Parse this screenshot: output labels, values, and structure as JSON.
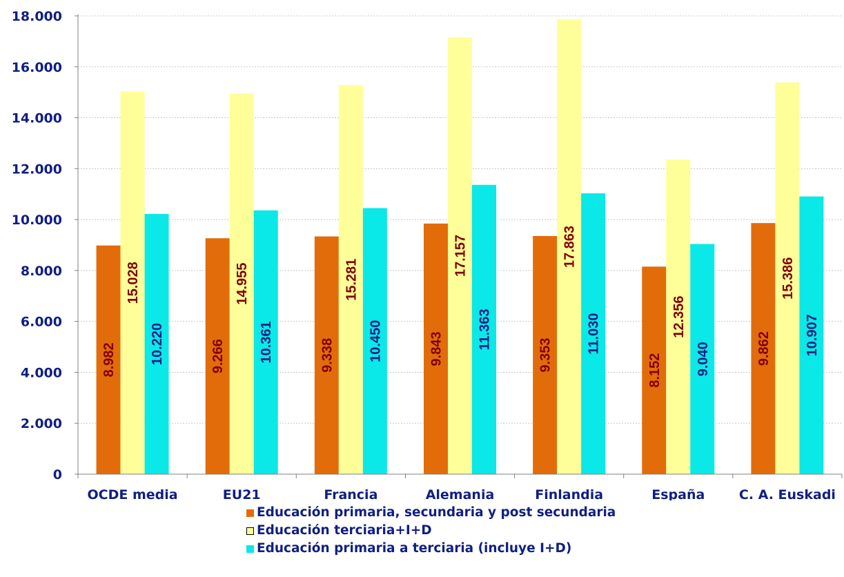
{
  "chart_data": {
    "type": "bar",
    "title": "",
    "xlabel": "",
    "ylabel": "",
    "ylim": [
      0,
      18000
    ],
    "ytick_values": [
      0,
      2000,
      4000,
      6000,
      8000,
      10000,
      12000,
      14000,
      16000,
      18000
    ],
    "ytick_labels": [
      "0",
      "2.000",
      "4.000",
      "6.000",
      "8.000",
      "10.000",
      "12.000",
      "14.000",
      "16.000",
      "18.000"
    ],
    "grid": true,
    "legend_position": "bottom",
    "categories": [
      "OCDE media",
      "EU21",
      "Francia",
      "Alemania",
      "Finlandia",
      "España",
      "C. A. Euskadi"
    ],
    "series": [
      {
        "name": "Educación primaria, secundaria y post secundaria",
        "color": "#e36c0a",
        "label_color": "#7f0000",
        "values": [
          8982,
          9266,
          9338,
          9843,
          9353,
          8152,
          9862
        ],
        "labels": [
          "8.982",
          "9.266",
          "9.338",
          "9.843",
          "9.353",
          "8.152",
          "9.862"
        ]
      },
      {
        "name": "Educación terciaria+I+D",
        "color": "#ffff99",
        "label_color": "#7f0000",
        "values": [
          15028,
          14955,
          15281,
          17157,
          17863,
          12356,
          15386
        ],
        "labels": [
          "15.028",
          "14.955",
          "15.281",
          "17.157",
          "17.863",
          "12.356",
          "15.386"
        ]
      },
      {
        "name": "Educación primaria a terciaria (incluye I+D)",
        "color": "#0be8e8",
        "label_color": "#0f1f82",
        "values": [
          10220,
          10361,
          10450,
          11363,
          11030,
          9040,
          10907
        ],
        "labels": [
          "10.220",
          "10.361",
          "10.450",
          "11.363",
          "11.030",
          "9.040",
          "10.907"
        ]
      }
    ]
  }
}
